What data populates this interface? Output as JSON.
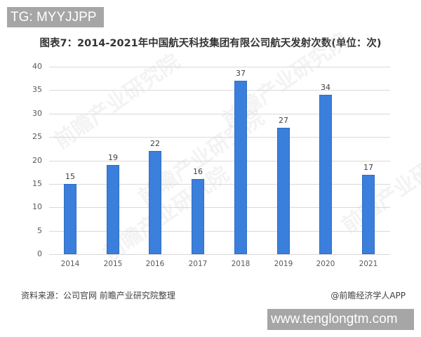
{
  "overlay": {
    "top_tag": "TG: MYYJJPP",
    "bottom_tag": "www.tenglongtm.com"
  },
  "title": "图表7：2014-2021年中国航天科技集团有限公司航天发射次数(单位：次)",
  "footer": {
    "source": "资料来源：公司官网 前瞻产业研究院整理",
    "credit": "@前瞻经济学人APP"
  },
  "watermark_text": "前瞻产业研究院",
  "colors": {
    "bar": "#3b7fdc",
    "grid": "#d9d9d9",
    "tag_bg": "#a6a6a6"
  },
  "chart_data": {
    "type": "bar",
    "title": "图表7：2014-2021年中国航天科技集团有限公司航天发射次数(单位：次)",
    "xlabel": "",
    "ylabel": "",
    "categories": [
      "2014",
      "2015",
      "2016",
      "2017",
      "2018",
      "2019",
      "2020",
      "2021"
    ],
    "values": [
      15,
      19,
      22,
      16,
      37,
      27,
      34,
      17
    ],
    "series": [
      {
        "name": "航天发射次数",
        "values": [
          15,
          19,
          22,
          16,
          37,
          27,
          34,
          17
        ]
      }
    ],
    "ylim": [
      0,
      40
    ],
    "yticks": [
      0,
      5,
      10,
      15,
      20,
      25,
      30,
      35,
      40
    ],
    "grid": true,
    "legend": "none",
    "data_labels": true,
    "unit": "次"
  }
}
